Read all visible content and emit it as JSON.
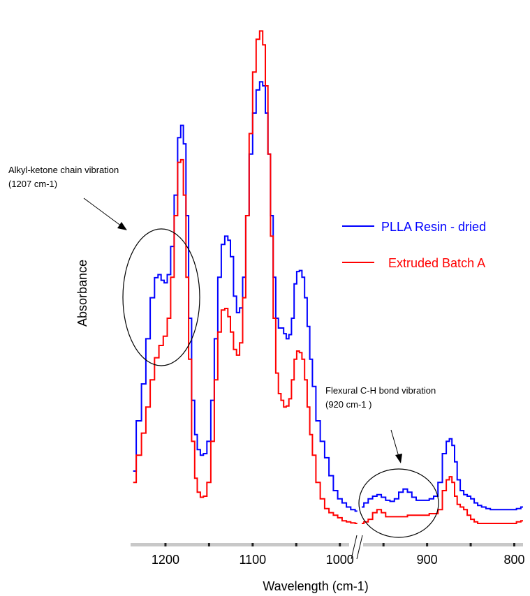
{
  "chart_data": {
    "type": "line",
    "xlabel": "Wavelength (cm-1)",
    "ylabel": "Absorbance",
    "x_reversed": true,
    "xlim": [
      1240,
      790
    ],
    "x_ticks": [
      1200,
      1100,
      1000,
      900,
      800
    ],
    "x_axis_break_after": 1000,
    "ylim": [
      0,
      1
    ],
    "y_ticks_shown": false,
    "grid": false,
    "legend_position": "right",
    "series": [
      {
        "name": "PLLA Resin - dried",
        "color": "#0000ff",
        "segments": [
          {
            "x": [
              1237,
              1230,
              1225,
              1220,
              1215,
              1210,
              1207,
              1203,
              1200,
              1196,
              1192,
              1188,
              1184,
              1181,
              1178,
              1175,
              1172,
              1168,
              1165,
              1162,
              1158,
              1155,
              1150,
              1146,
              1142,
              1138,
              1134,
              1130,
              1127,
              1124,
              1120,
              1117,
              1113,
              1110,
              1106,
              1102,
              1098,
              1094,
              1090,
              1087,
              1084,
              1081,
              1078,
              1075,
              1072,
              1069,
              1066,
              1063,
              1060,
              1057,
              1054,
              1051,
              1048,
              1045,
              1042,
              1039,
              1036,
              1033,
              1030,
              1025,
              1020,
              1015,
              1010,
              1005,
              1000,
              995,
              990,
              985,
              980
            ],
            "y": [
              0.102,
              0.2,
              0.272,
              0.36,
              0.44,
              0.479,
              0.485,
              0.474,
              0.469,
              0.485,
              0.54,
              0.64,
              0.752,
              0.776,
              0.74,
              0.6,
              0.4,
              0.24,
              0.173,
              0.144,
              0.133,
              0.136,
              0.16,
              0.24,
              0.36,
              0.48,
              0.544,
              0.56,
              0.552,
              0.52,
              0.443,
              0.411,
              0.42,
              0.48,
              0.6,
              0.72,
              0.8,
              0.845,
              0.861,
              0.853,
              0.8,
              0.72,
              0.6,
              0.48,
              0.4,
              0.381,
              0.381,
              0.37,
              0.36,
              0.368,
              0.4,
              0.467,
              0.491,
              0.493,
              0.48,
              0.44,
              0.384,
              0.32,
              0.267,
              0.2,
              0.16,
              0.128,
              0.093,
              0.064,
              0.048,
              0.04,
              0.032,
              0.027,
              0.024
            ]
          },
          {
            "x": [
              975,
              970,
              965,
              960,
              955,
              950,
              945,
              940,
              935,
              930,
              925,
              920,
              915,
              910,
              905,
              900,
              895,
              890,
              885,
              880,
              876,
              873,
              870,
              867,
              864,
              860,
              856,
              852,
              848,
              844,
              840,
              835,
              830,
              825,
              820,
              815,
              810,
              805,
              800,
              795,
              790
            ],
            "y": [
              0.032,
              0.04,
              0.048,
              0.053,
              0.056,
              0.051,
              0.045,
              0.043,
              0.048,
              0.061,
              0.067,
              0.061,
              0.051,
              0.045,
              0.045,
              0.045,
              0.048,
              0.053,
              0.08,
              0.136,
              0.16,
              0.165,
              0.152,
              0.12,
              0.085,
              0.064,
              0.056,
              0.053,
              0.048,
              0.04,
              0.035,
              0.032,
              0.029,
              0.027,
              0.027,
              0.027,
              0.027,
              0.027,
              0.027,
              0.029,
              0.032
            ]
          }
        ]
      },
      {
        "name": "Extruded Batch A",
        "color": "#ff0000",
        "segments": [
          {
            "x": [
              1237,
              1230,
              1225,
              1220,
              1215,
              1210,
              1205,
              1200,
              1196,
              1192,
              1188,
              1184,
              1181,
              1178,
              1175,
              1172,
              1168,
              1165,
              1162,
              1158,
              1155,
              1150,
              1146,
              1142,
              1138,
              1134,
              1130,
              1127,
              1124,
              1120,
              1117,
              1113,
              1110,
              1106,
              1102,
              1098,
              1094,
              1090,
              1087,
              1084,
              1081,
              1078,
              1075,
              1072,
              1069,
              1066,
              1063,
              1060,
              1057,
              1054,
              1051,
              1048,
              1045,
              1042,
              1039,
              1036,
              1033,
              1030,
              1025,
              1020,
              1015,
              1010,
              1005,
              1000,
              995,
              990,
              985,
              980
            ],
            "y": [
              0.08,
              0.133,
              0.176,
              0.227,
              0.28,
              0.323,
              0.347,
              0.365,
              0.4,
              0.48,
              0.6,
              0.704,
              0.709,
              0.64,
              0.48,
              0.32,
              0.16,
              0.088,
              0.061,
              0.051,
              0.053,
              0.08,
              0.16,
              0.28,
              0.373,
              0.416,
              0.419,
              0.403,
              0.373,
              0.339,
              0.328,
              0.352,
              0.44,
              0.6,
              0.76,
              0.88,
              0.944,
              0.96,
              0.933,
              0.853,
              0.72,
              0.56,
              0.4,
              0.293,
              0.253,
              0.24,
              0.227,
              0.229,
              0.243,
              0.28,
              0.32,
              0.336,
              0.333,
              0.32,
              0.28,
              0.227,
              0.173,
              0.133,
              0.08,
              0.048,
              0.029,
              0.021,
              0.016,
              0.011,
              0.005,
              0.003,
              0.001,
              0.0
            ]
          },
          {
            "x": [
              975,
              970,
              965,
              960,
              955,
              950,
              945,
              940,
              935,
              930,
              925,
              920,
              915,
              910,
              905,
              900,
              895,
              890,
              885,
              880,
              876,
              873,
              870,
              867,
              864,
              860,
              856,
              852,
              848,
              844,
              840,
              835,
              830,
              825,
              820,
              815,
              810,
              805,
              800,
              795,
              790
            ],
            "y": [
              0.0,
              0.003,
              0.008,
              0.021,
              0.027,
              0.021,
              0.013,
              0.013,
              0.013,
              0.013,
              0.013,
              0.016,
              0.016,
              0.016,
              0.016,
              0.016,
              0.019,
              0.019,
              0.027,
              0.064,
              0.085,
              0.091,
              0.08,
              0.053,
              0.037,
              0.032,
              0.027,
              0.016,
              0.008,
              0.003,
              0.0,
              0.0,
              0.0,
              0.0,
              0.0,
              0.0,
              0.0,
              0.0,
              0.0,
              0.003,
              0.005
            ]
          }
        ]
      }
    ],
    "annotations": [
      {
        "text_line1": "Alkyl-ketone chain vibration",
        "text_line2": "(1207 cm-1)",
        "target_x": 1207
      },
      {
        "text_line1": "Flexural C-H bond vibration",
        "text_line2": "(920 cm-1 )",
        "target_x": 920
      }
    ]
  }
}
